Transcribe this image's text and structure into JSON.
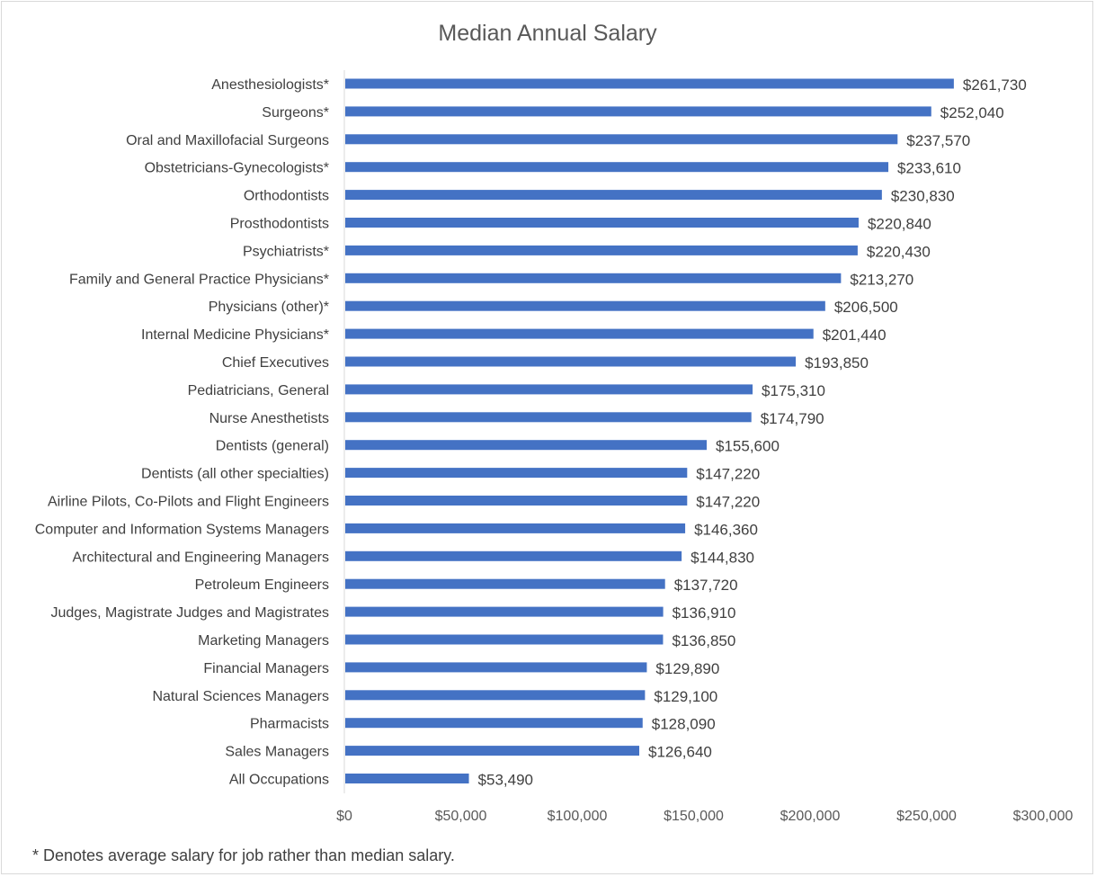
{
  "chart_data": {
    "type": "bar",
    "orientation": "horizontal",
    "title": "Median Annual Salary",
    "xlabel": "",
    "ylabel": "",
    "xlim": [
      0,
      300000
    ],
    "x_ticks": [
      0,
      50000,
      100000,
      150000,
      200000,
      250000,
      300000
    ],
    "x_tick_labels": [
      "$0",
      "$50,000",
      "$100,000",
      "$150,000",
      "$200,000",
      "$250,000",
      "$300,000"
    ],
    "grid": false,
    "legend": "none",
    "bar_color": "#4472c4",
    "categories": [
      "Anesthesiologists*",
      "Surgeons*",
      "Oral and Maxillofacial Surgeons",
      "Obstetricians-Gynecologists*",
      "Orthodontists",
      "Prosthodontists",
      "Psychiatrists*",
      "Family and General Practice Physicians*",
      "Physicians (other)*",
      "Internal Medicine Physicians*",
      "Chief Executives",
      "Pediatricians, General",
      "Nurse Anesthetists",
      "Dentists (general)",
      "Dentists (all other specialties)",
      "Airline Pilots, Co-Pilots and Flight Engineers",
      "Computer and Information Systems Managers",
      "Architectural and Engineering Managers",
      "Petroleum Engineers",
      "Judges, Magistrate Judges and Magistrates",
      "Marketing Managers",
      "Financial Managers",
      "Natural Sciences Managers",
      "Pharmacists",
      "Sales Managers",
      "All Occupations"
    ],
    "values": [
      261730,
      252040,
      237570,
      233610,
      230830,
      220840,
      220430,
      213270,
      206500,
      201440,
      193850,
      175310,
      174790,
      155600,
      147220,
      147220,
      146360,
      144830,
      137720,
      136910,
      136850,
      129890,
      129100,
      128090,
      126640,
      53490
    ],
    "data_labels": [
      "$261,730",
      "$252,040",
      "$237,570",
      "$233,610",
      "$230,830",
      "$220,840",
      "$220,430",
      "$213,270",
      "$206,500",
      "$201,440",
      "$193,850",
      "$175,310",
      "$174,790",
      "$155,600",
      "$147,220",
      "$147,220",
      "$146,360",
      "$144,830",
      "$137,720",
      "$136,910",
      "$136,850",
      "$129,890",
      "$129,100",
      "$128,090",
      "$126,640",
      "$53,490"
    ],
    "footnote": "* Denotes average salary for job rather than median salary."
  }
}
